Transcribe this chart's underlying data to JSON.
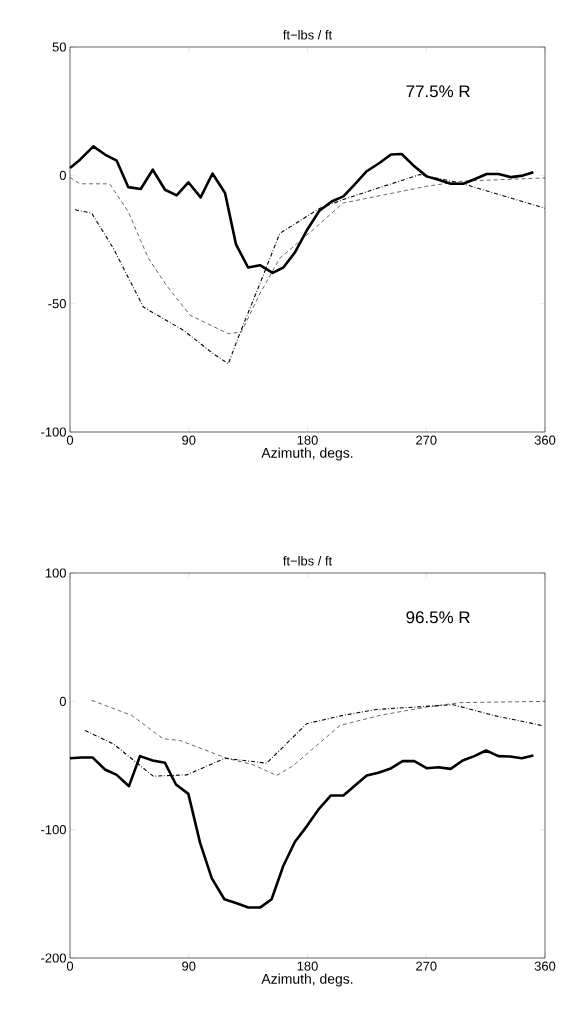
{
  "chart_data": [
    {
      "type": "line",
      "title": "ft−lbs / ft",
      "xlabel": "Azimuth, degs.",
      "annotations": [
        "77.5% R"
      ],
      "xlim": [
        0,
        360
      ],
      "ylim": [
        -100,
        50
      ],
      "xticks": [
        0,
        90,
        180,
        270,
        360
      ],
      "yticks": [
        -100,
        -50,
        0,
        50
      ],
      "series": [
        {
          "color": "#000000",
          "line_style": "solid",
          "x": [
            0,
            7.6,
            17.7,
            26.5,
            35.4,
            44.2,
            53.6,
            62.7,
            72,
            80.8,
            89.7,
            99,
            108,
            117.5,
            125.8,
            135,
            144,
            153.6,
            161.7,
            170.5,
            179.4,
            189,
            198.3,
            207.2,
            216,
            224.9,
            234.5,
            243.3,
            251.4,
            261,
            270.3,
            279.2,
            288.5,
            298,
            307,
            315.8,
            324.7,
            334.3,
            343.1,
            351.2
          ],
          "values": [
            2.9,
            6.1,
            11.3,
            8.1,
            5.7,
            -4.6,
            -5.3,
            2.2,
            -5.6,
            -7.8,
            -2.7,
            -8.6,
            0.7,
            -6.9,
            -26.9,
            -35.9,
            -35,
            -38,
            -35.9,
            -30,
            -21.5,
            -13.8,
            -10.2,
            -8.2,
            -3.4,
            1.6,
            4.8,
            8.1,
            8.3,
            3.5,
            -0.4,
            -1.7,
            -3.3,
            -3.3,
            -1.4,
            0.5,
            0.5,
            -0.7,
            -0.1,
            1.2
          ]
        },
        {
          "color": "#000000",
          "line_style": "dashed",
          "x": [
            0,
            7.6,
            30,
            44,
            59.4,
            73,
            91,
            120,
            130,
            144,
            159,
            184,
            207,
            270,
            296,
            360
          ],
          "values": [
            -0.8,
            -3.3,
            -3.3,
            -14,
            -32.3,
            -42.8,
            -54.5,
            -61.7,
            -61,
            -46,
            -32.3,
            -21.3,
            -10.8,
            -4.3,
            -2.3,
            -1
          ]
        },
        {
          "color": "#000000",
          "line_style": "dashdot",
          "x": [
            3.8,
            16.4,
            32.8,
            55.6,
            86,
            108.6,
            120,
            127.6,
            146.5,
            159,
            189.5,
            210,
            265,
            296,
            360
          ],
          "values": [
            -13.4,
            -14.7,
            -28.4,
            -51.3,
            -60.4,
            -69.5,
            -73.4,
            -63,
            -38.9,
            -22.6,
            -12.8,
            -8.9,
            0.3,
            -3,
            -12.8
          ]
        }
      ]
    },
    {
      "type": "line",
      "title": "ft−lbs / ft",
      "xlabel": "Azimuth, degs.",
      "annotations": [
        "96.5% R"
      ],
      "xlim": [
        0,
        360
      ],
      "ylim": [
        -200,
        100
      ],
      "xticks": [
        0,
        90,
        180,
        270,
        360
      ],
      "yticks": [
        -200,
        -100,
        0,
        100
      ],
      "series": [
        {
          "color": "#000000",
          "line_style": "solid",
          "x": [
            0,
            8.8,
            17.2,
            26.5,
            35.4,
            44.7,
            53,
            62.7,
            72,
            80.3,
            89.7,
            98.5,
            107.4,
            117,
            126.3,
            135.2,
            144,
            152.8,
            161.7,
            170.5,
            179.4,
            188.2,
            197.6,
            207.2,
            216,
            224.9,
            233.7,
            242.5,
            252.1,
            261,
            270.3,
            279.2,
            288.5,
            297.6,
            306.4,
            315.3,
            324.7,
            333.5,
            342.4,
            351.2
          ],
          "values": [
            -44.3,
            -43.8,
            -43.8,
            -53.1,
            -57.3,
            -66.1,
            -42.7,
            -46.1,
            -47.9,
            -64.8,
            -72.1,
            -109.9,
            -137.8,
            -154.2,
            -157.3,
            -160.7,
            -160.7,
            -154.2,
            -128.1,
            -109.4,
            -97.4,
            -84.4,
            -73.4,
            -73.4,
            -65.6,
            -57.8,
            -55.7,
            -52.6,
            -46.6,
            -46.6,
            -52.1,
            -51.3,
            -52.6,
            -46.1,
            -42.7,
            -38.3,
            -42.7,
            -43,
            -44.3,
            -42.2
          ]
        },
        {
          "color": "#000000",
          "line_style": "dashed",
          "x": [
            16.4,
            46.7,
            70.7,
            83.4,
            118.7,
            139,
            156.6,
            169.3,
            204.6,
            235,
            270.3,
            296,
            360
          ],
          "values": [
            0.8,
            -10.9,
            -29.2,
            -30.5,
            -44.3,
            -49.5,
            -57.8,
            -50,
            -18.8,
            -10.9,
            -4.4,
            -1,
            0
          ]
        },
        {
          "color": "#000000",
          "line_style": "dashdot",
          "x": [
            11.4,
            32.8,
            63.1,
            88.4,
            117.5,
            149,
            179.4,
            207,
            232.5,
            290.6,
            320.8,
            357.5
          ],
          "values": [
            -22.7,
            -33.1,
            -58.3,
            -57.3,
            -44.3,
            -48.2,
            -17.4,
            -10.9,
            -6.3,
            -2.6,
            -10.9,
            -18.8
          ]
        }
      ]
    }
  ]
}
